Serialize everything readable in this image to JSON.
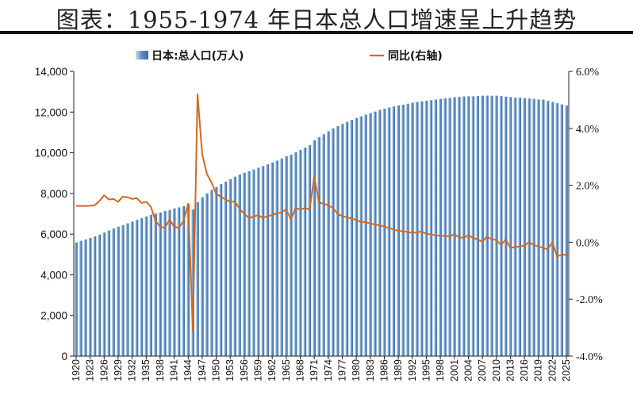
{
  "header": {
    "title": "图表：1955-1974 年日本总人口增速呈上升趋势"
  },
  "colors": {
    "bar": "#5a8cc0",
    "line": "#d2691e"
  },
  "chart_data": {
    "type": "bar+line",
    "title": "图表：1955-1974 年日本总人口增速呈上升趋势",
    "x": [
      1920,
      1921,
      1922,
      1923,
      1924,
      1925,
      1926,
      1927,
      1928,
      1929,
      1930,
      1931,
      1932,
      1933,
      1934,
      1935,
      1936,
      1937,
      1938,
      1939,
      1940,
      1941,
      1942,
      1943,
      1944,
      1945,
      1946,
      1947,
      1948,
      1949,
      1950,
      1951,
      1952,
      1953,
      1954,
      1955,
      1956,
      1957,
      1958,
      1959,
      1960,
      1961,
      1962,
      1963,
      1964,
      1965,
      1966,
      1967,
      1968,
      1969,
      1970,
      1971,
      1972,
      1973,
      1974,
      1975,
      1976,
      1977,
      1978,
      1979,
      1980,
      1981,
      1982,
      1983,
      1984,
      1985,
      1986,
      1987,
      1988,
      1989,
      1990,
      1991,
      1992,
      1993,
      1994,
      1995,
      1996,
      1997,
      1998,
      1999,
      2000,
      2001,
      2002,
      2003,
      2004,
      2005,
      2006,
      2007,
      2008,
      2009,
      2010,
      2011,
      2012,
      2013,
      2014,
      2015,
      2016,
      2017,
      2018,
      2019,
      2020,
      2021,
      2022,
      2023,
      2024,
      2025
    ],
    "x_tick_labels": [
      "1920",
      "1923",
      "1926",
      "1929",
      "1932",
      "1935",
      "1938",
      "1941",
      "1944",
      "1947",
      "1950",
      "1953",
      "1956",
      "1959",
      "1962",
      "1965",
      "1968",
      "1971",
      "1974",
      "1977",
      "1980",
      "1983",
      "1986",
      "1989",
      "1992",
      "1995",
      "1998",
      "2001",
      "2004",
      "2007",
      "2010",
      "2013",
      "2016",
      "2019",
      "2022",
      "2025"
    ],
    "series": [
      {
        "name": "日本:总人口(万人)",
        "type": "bar",
        "axis": "left",
        "values": [
          5596,
          5667,
          5739,
          5812,
          5888,
          5974,
          6074,
          6174,
          6274,
          6367,
          6445,
          6529,
          6614,
          6701,
          6781,
          6865,
          6952,
          7013,
          7063,
          7138,
          7193,
          7263,
          7315,
          7373,
          7471,
          7215,
          7575,
          7810,
          8000,
          8177,
          8320,
          8458,
          8580,
          8698,
          8823,
          8928,
          9017,
          9093,
          9177,
          9264,
          9342,
          9429,
          9518,
          9616,
          9718,
          9828,
          9904,
          10020,
          10133,
          10254,
          10372,
          10613,
          10767,
          10910,
          11057,
          11194,
          11309,
          11417,
          11519,
          11616,
          11706,
          11790,
          11873,
          11951,
          12023,
          12105,
          12166,
          12224,
          12278,
          12325,
          12361,
          12410,
          12457,
          12494,
          12527,
          12557,
          12586,
          12616,
          12649,
          12669,
          12693,
          12732,
          12749,
          12769,
          12779,
          12777,
          12790,
          12803,
          12808,
          12803,
          12806,
          12783,
          12759,
          12740,
          12708,
          12709,
          12693,
          12671,
          12644,
          12617,
          12615,
          12550,
          12495,
          12435,
          12380,
          12320
        ]
      },
      {
        "name": "同比(右轴)",
        "type": "line",
        "axis": "right",
        "values": [
          1.27,
          1.28,
          1.27,
          1.28,
          1.3,
          1.45,
          1.65,
          1.5,
          1.52,
          1.42,
          1.6,
          1.58,
          1.52,
          1.55,
          1.38,
          1.42,
          1.25,
          0.75,
          0.55,
          0.5,
          0.8,
          0.55,
          0.5,
          0.75,
          1.35,
          -3.1,
          5.2,
          3.1,
          2.4,
          2.1,
          1.7,
          1.6,
          1.5,
          1.42,
          1.43,
          1.18,
          1.0,
          0.85,
          0.9,
          0.95,
          0.85,
          0.92,
          0.95,
          1.02,
          1.05,
          1.15,
          0.8,
          1.2,
          1.15,
          1.2,
          1.15,
          2.3,
          1.4,
          1.35,
          1.3,
          1.2,
          1.0,
          0.92,
          0.88,
          0.83,
          0.78,
          0.72,
          0.7,
          0.66,
          0.62,
          0.6,
          0.55,
          0.5,
          0.45,
          0.4,
          0.38,
          0.36,
          0.33,
          0.34,
          0.38,
          0.3,
          0.27,
          0.24,
          0.23,
          0.22,
          0.21,
          0.28,
          0.18,
          0.15,
          0.25,
          0.15,
          0.1,
          0.02,
          0.2,
          0.1,
          0.08,
          -0.1,
          0.1,
          -0.2,
          -0.17,
          -0.15,
          -0.12,
          0.0,
          -0.1,
          -0.15,
          -0.2,
          -0.25,
          0.0,
          -0.5,
          -0.44,
          -0.44
        ]
      }
    ],
    "yleft": {
      "min": 0,
      "max": 14000,
      "step": 2000,
      "tick_labels": [
        "0",
        "2,000",
        "4,000",
        "6,000",
        "8,000",
        "10,000",
        "12,000",
        "14,000"
      ]
    },
    "yright": {
      "min": -4.0,
      "max": 6.0,
      "step": 2.0,
      "tick_labels": [
        "-4.0%",
        "-2.0%",
        "0.0%",
        "2.0%",
        "4.0%",
        "6.0%"
      ]
    },
    "legend": {
      "position": "top",
      "items": [
        "日本:总人口(万人)",
        "同比(右轴)"
      ]
    },
    "grid": false
  }
}
